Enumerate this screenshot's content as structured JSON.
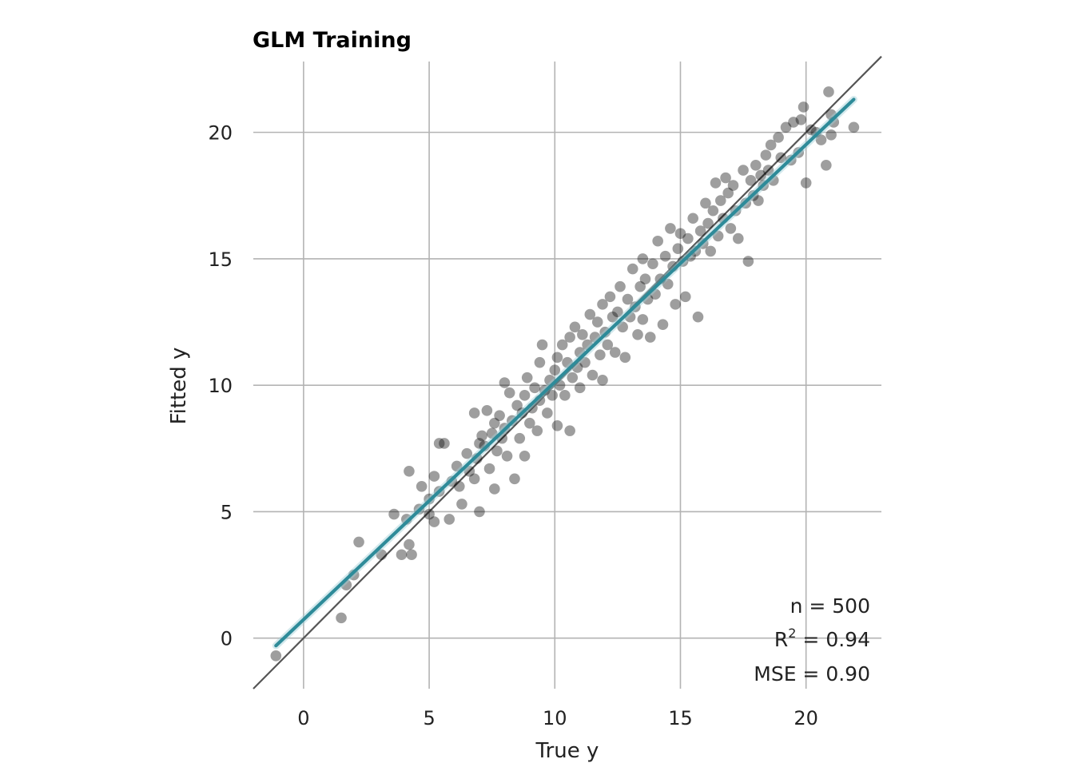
{
  "chart_data": {
    "type": "scatter",
    "title": "GLM Training",
    "xlabel": "True y",
    "ylabel": "Fitted y",
    "xlim": [
      -2,
      23
    ],
    "ylim": [
      -2,
      22.8
    ],
    "xticks": [
      0,
      5,
      10,
      15,
      20
    ],
    "yticks": [
      0,
      5,
      10,
      15,
      20
    ],
    "grid": true,
    "point_color": "#000000",
    "fit_color": "#2e8b99",
    "identity_color": "#555555",
    "n_points": 500,
    "points": [
      [
        -1.1,
        -0.7
      ],
      [
        1.5,
        0.8
      ],
      [
        1.7,
        2.1
      ],
      [
        2.0,
        2.5
      ],
      [
        2.2,
        3.8
      ],
      [
        3.1,
        3.3
      ],
      [
        3.6,
        4.9
      ],
      [
        3.9,
        3.3
      ],
      [
        4.1,
        4.7
      ],
      [
        4.2,
        3.7
      ],
      [
        4.3,
        3.3
      ],
      [
        4.2,
        6.6
      ],
      [
        4.6,
        5.1
      ],
      [
        4.7,
        6.0
      ],
      [
        5.0,
        4.9
      ],
      [
        5.0,
        5.5
      ],
      [
        5.2,
        4.6
      ],
      [
        5.2,
        6.4
      ],
      [
        5.4,
        5.8
      ],
      [
        5.4,
        7.7
      ],
      [
        5.6,
        7.7
      ],
      [
        5.8,
        4.7
      ],
      [
        5.9,
        6.2
      ],
      [
        6.1,
        6.8
      ],
      [
        6.2,
        6.0
      ],
      [
        6.3,
        5.3
      ],
      [
        6.5,
        7.3
      ],
      [
        6.6,
        6.6
      ],
      [
        6.8,
        6.3
      ],
      [
        6.8,
        8.9
      ],
      [
        6.9,
        7.1
      ],
      [
        7.0,
        5.0
      ],
      [
        7.0,
        7.7
      ],
      [
        7.1,
        8.0
      ],
      [
        7.2,
        7.6
      ],
      [
        7.3,
        9.0
      ],
      [
        7.4,
        6.7
      ],
      [
        7.5,
        8.1
      ],
      [
        7.6,
        5.9
      ],
      [
        7.6,
        8.5
      ],
      [
        7.7,
        7.4
      ],
      [
        7.8,
        8.8
      ],
      [
        7.9,
        7.9
      ],
      [
        8.0,
        10.1
      ],
      [
        8.0,
        8.3
      ],
      [
        8.1,
        7.2
      ],
      [
        8.2,
        9.7
      ],
      [
        8.3,
        8.6
      ],
      [
        8.4,
        6.3
      ],
      [
        8.5,
        9.2
      ],
      [
        8.6,
        7.9
      ],
      [
        8.7,
        8.9
      ],
      [
        8.8,
        9.6
      ],
      [
        8.8,
        7.2
      ],
      [
        8.9,
        10.3
      ],
      [
        9.0,
        8.5
      ],
      [
        9.1,
        9.1
      ],
      [
        9.2,
        9.9
      ],
      [
        9.3,
        8.2
      ],
      [
        9.4,
        10.9
      ],
      [
        9.4,
        9.4
      ],
      [
        9.5,
        11.6
      ],
      [
        9.6,
        9.8
      ],
      [
        9.7,
        8.9
      ],
      [
        9.8,
        10.2
      ],
      [
        9.9,
        9.6
      ],
      [
        10.0,
        10.6
      ],
      [
        10.1,
        8.4
      ],
      [
        10.1,
        11.1
      ],
      [
        10.2,
        10.0
      ],
      [
        10.3,
        11.6
      ],
      [
        10.4,
        9.6
      ],
      [
        10.5,
        10.9
      ],
      [
        10.6,
        8.2
      ],
      [
        10.6,
        11.9
      ],
      [
        10.7,
        10.3
      ],
      [
        10.8,
        12.3
      ],
      [
        10.9,
        10.7
      ],
      [
        11.0,
        11.3
      ],
      [
        11.0,
        9.9
      ],
      [
        11.1,
        12.0
      ],
      [
        11.2,
        10.9
      ],
      [
        11.3,
        11.6
      ],
      [
        11.4,
        12.8
      ],
      [
        11.5,
        10.4
      ],
      [
        11.6,
        11.9
      ],
      [
        11.7,
        12.5
      ],
      [
        11.8,
        11.2
      ],
      [
        11.9,
        13.2
      ],
      [
        11.9,
        10.2
      ],
      [
        12.0,
        12.1
      ],
      [
        12.1,
        11.6
      ],
      [
        12.2,
        13.5
      ],
      [
        12.3,
        12.7
      ],
      [
        12.4,
        11.3
      ],
      [
        12.5,
        12.9
      ],
      [
        12.6,
        13.9
      ],
      [
        12.7,
        12.3
      ],
      [
        12.8,
        11.1
      ],
      [
        12.9,
        13.4
      ],
      [
        13.0,
        12.7
      ],
      [
        13.1,
        14.6
      ],
      [
        13.2,
        13.1
      ],
      [
        13.3,
        12.0
      ],
      [
        13.4,
        13.9
      ],
      [
        13.5,
        15.0
      ],
      [
        13.5,
        12.6
      ],
      [
        13.6,
        14.2
      ],
      [
        13.7,
        13.4
      ],
      [
        13.8,
        11.9
      ],
      [
        13.9,
        14.8
      ],
      [
        14.0,
        13.6
      ],
      [
        14.1,
        15.7
      ],
      [
        14.2,
        14.2
      ],
      [
        14.3,
        12.4
      ],
      [
        14.4,
        15.1
      ],
      [
        14.5,
        14.0
      ],
      [
        14.6,
        16.2
      ],
      [
        14.7,
        14.7
      ],
      [
        14.8,
        13.2
      ],
      [
        14.9,
        15.4
      ],
      [
        15.0,
        16.0
      ],
      [
        15.1,
        14.9
      ],
      [
        15.2,
        13.5
      ],
      [
        15.3,
        15.8
      ],
      [
        15.4,
        15.1
      ],
      [
        15.5,
        16.6
      ],
      [
        15.6,
        15.3
      ],
      [
        15.7,
        12.7
      ],
      [
        15.8,
        16.1
      ],
      [
        15.9,
        15.6
      ],
      [
        16.0,
        17.2
      ],
      [
        16.1,
        16.4
      ],
      [
        16.2,
        15.3
      ],
      [
        16.3,
        16.9
      ],
      [
        16.4,
        18.0
      ],
      [
        16.5,
        15.9
      ],
      [
        16.6,
        17.3
      ],
      [
        16.7,
        16.6
      ],
      [
        16.8,
        18.2
      ],
      [
        16.9,
        17.6
      ],
      [
        17.0,
        16.2
      ],
      [
        17.1,
        17.9
      ],
      [
        17.2,
        16.9
      ],
      [
        17.3,
        15.8
      ],
      [
        17.5,
        18.5
      ],
      [
        17.6,
        17.2
      ],
      [
        17.7,
        14.9
      ],
      [
        17.8,
        18.1
      ],
      [
        17.9,
        17.5
      ],
      [
        18.0,
        18.7
      ],
      [
        18.1,
        17.3
      ],
      [
        18.2,
        18.3
      ],
      [
        18.3,
        17.9
      ],
      [
        18.4,
        19.1
      ],
      [
        18.5,
        18.5
      ],
      [
        18.6,
        19.5
      ],
      [
        18.7,
        18.1
      ],
      [
        18.9,
        19.8
      ],
      [
        19.0,
        19.0
      ],
      [
        19.2,
        20.2
      ],
      [
        19.4,
        18.9
      ],
      [
        19.5,
        20.4
      ],
      [
        19.7,
        19.2
      ],
      [
        19.8,
        20.5
      ],
      [
        19.9,
        21.0
      ],
      [
        20.0,
        18.0
      ],
      [
        20.2,
        20.1
      ],
      [
        20.4,
        20.0
      ],
      [
        20.6,
        19.7
      ],
      [
        20.8,
        18.7
      ],
      [
        20.9,
        21.6
      ],
      [
        21.0,
        20.7
      ],
      [
        21.0,
        19.9
      ],
      [
        21.1,
        20.4
      ],
      [
        21.9,
        20.2
      ]
    ],
    "fit_line": {
      "x": [
        -1.1,
        21.9
      ],
      "y": [
        -0.3,
        21.3
      ]
    },
    "identity_line": {
      "x": [
        -2,
        23
      ],
      "y": [
        -2,
        23
      ]
    },
    "annotations": {
      "n": "n = 500",
      "r2_prefix": "R",
      "r2_sup": "2",
      "r2_value": " = 0.94",
      "mse": "MSE = 0.90"
    }
  }
}
